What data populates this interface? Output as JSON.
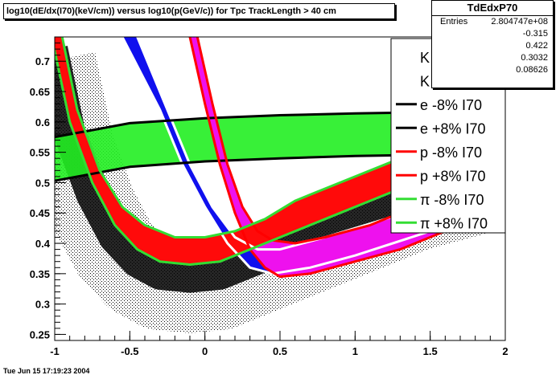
{
  "chart_data": {
    "type": "scatter",
    "title": "log10(dE/dx(I70)(keV/cm)) versus log10(p(GeV/c)) for Tpc TrackLength > 40 cm",
    "xlim": [
      -1,
      2
    ],
    "ylim": [
      0.24,
      0.74
    ],
    "x_ticks": [
      "-1",
      "-0.5",
      "0",
      "0.5",
      "1",
      "1.5",
      "2"
    ],
    "x_tick_values": [
      -1,
      -0.5,
      0,
      0.5,
      1,
      1.5,
      2
    ],
    "y_ticks": [
      "0.25",
      "0.3",
      "0.35",
      "0.4",
      "0.45",
      "0.5",
      "0.55",
      "0.6",
      "0.65",
      "0.7"
    ],
    "y_tick_values": [
      0.25,
      0.3,
      0.35,
      0.4,
      0.45,
      0.5,
      0.55,
      0.6,
      0.65,
      0.7
    ],
    "grid": false,
    "legend_position": "top-right",
    "series": [
      {
        "name": "K -8% I70",
        "color": "#ffffff",
        "x": [
          -0.55,
          -0.3,
          -0.15,
          0.0,
          0.15,
          0.3,
          0.45,
          0.7,
          1.0,
          1.5,
          2.0
        ],
        "y": [
          0.74,
          0.62,
          0.53,
          0.46,
          0.4,
          0.36,
          0.35,
          0.36,
          0.38,
          0.42,
          0.45
        ]
      },
      {
        "name": "K +8% I70",
        "color": "#ffffff",
        "x": [
          -0.45,
          -0.25,
          -0.1,
          0.05,
          0.2,
          0.35,
          0.5,
          0.8,
          1.2,
          1.6,
          2.0
        ],
        "y": [
          0.74,
          0.62,
          0.53,
          0.46,
          0.41,
          0.39,
          0.39,
          0.41,
          0.44,
          0.47,
          0.5
        ]
      },
      {
        "name": "e -8% I70",
        "color": "#000000",
        "x": [
          -1.0,
          -0.5,
          0.0,
          0.5,
          1.0,
          1.5,
          2.0
        ],
        "y": [
          0.503,
          0.526,
          0.535,
          0.54,
          0.544,
          0.546,
          0.547
        ]
      },
      {
        "name": "e +8% I70",
        "color": "#000000",
        "x": [
          -1.0,
          -0.5,
          0.0,
          0.5,
          1.0,
          1.5,
          2.0
        ],
        "y": [
          0.575,
          0.598,
          0.606,
          0.611,
          0.614,
          0.616,
          0.617
        ]
      },
      {
        "name": "p -8% I70",
        "color": "#ff0000",
        "x": [
          -0.1,
          0.0,
          0.1,
          0.2,
          0.3,
          0.4,
          0.5,
          0.7,
          1.0,
          1.3,
          1.6,
          2.0
        ],
        "y": [
          0.74,
          0.63,
          0.53,
          0.45,
          0.39,
          0.36,
          0.345,
          0.35,
          0.37,
          0.39,
          0.42,
          0.44
        ]
      },
      {
        "name": "p +8% I70",
        "color": "#ff0000",
        "x": [
          -0.05,
          0.05,
          0.15,
          0.25,
          0.35,
          0.45,
          0.6,
          0.8,
          1.1,
          1.4,
          1.7,
          2.0
        ],
        "y": [
          0.74,
          0.63,
          0.53,
          0.46,
          0.42,
          0.405,
          0.4,
          0.41,
          0.43,
          0.46,
          0.49,
          0.51
        ]
      },
      {
        "name": "π -8% I70",
        "color": "#33dd33",
        "x": [
          -1.02,
          -0.9,
          -0.75,
          -0.6,
          -0.45,
          -0.3,
          -0.1,
          0.1,
          0.3,
          0.5,
          0.8,
          1.1,
          1.4,
          1.7,
          2.0
        ],
        "y": [
          0.74,
          0.6,
          0.5,
          0.43,
          0.39,
          0.37,
          0.365,
          0.37,
          0.39,
          0.41,
          0.44,
          0.47,
          0.5,
          0.52,
          0.54
        ]
      },
      {
        "name": "π +8% I70",
        "color": "#33dd33",
        "x": [
          -0.95,
          -0.85,
          -0.7,
          -0.55,
          -0.4,
          -0.2,
          0.0,
          0.2,
          0.4,
          0.6,
          0.9,
          1.2,
          1.5,
          1.8,
          2.0
        ],
        "y": [
          0.74,
          0.62,
          0.52,
          0.46,
          0.43,
          0.41,
          0.41,
          0.42,
          0.44,
          0.47,
          0.5,
          0.53,
          0.56,
          0.58,
          0.6
        ]
      }
    ]
  },
  "stats": {
    "title": "TdEdxP70",
    "entries_label": "Entries",
    "entries_value": "2.804747e+08",
    "values": [
      "-0.315",
      "0.422",
      "0.3032",
      "0.08626"
    ]
  },
  "footer": {
    "timestamp": "Tue Jun 15 17:19:23 2004"
  }
}
